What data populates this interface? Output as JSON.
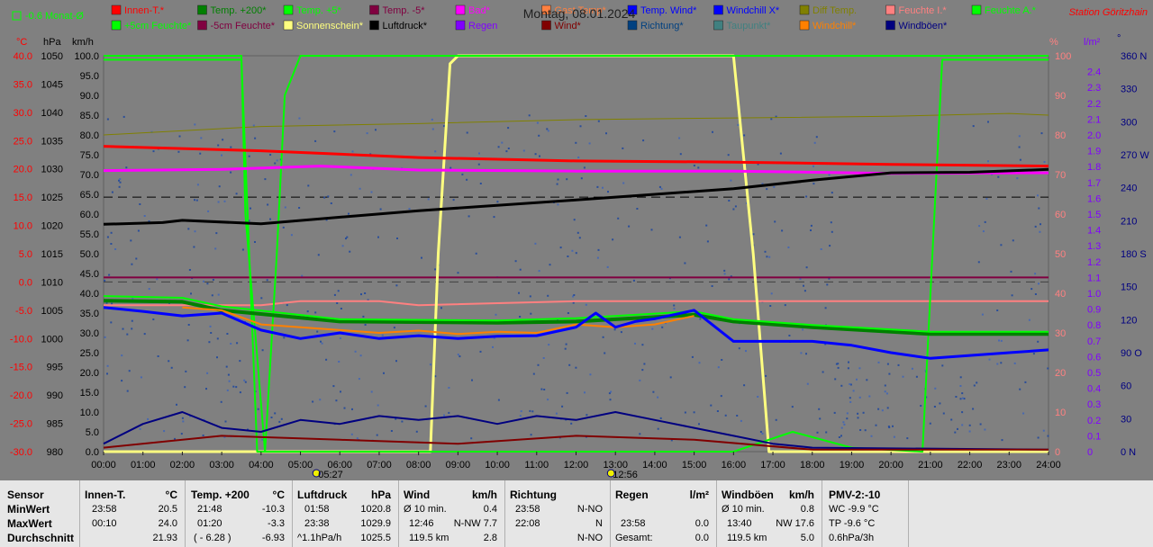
{
  "header": {
    "title": "Montag, 08.01.2024",
    "station": "Station Göritzhain",
    "indicator": "-0.6 Monat-Ø"
  },
  "legend": [
    {
      "label": "Innen-T.*",
      "color": "#ff0000"
    },
    {
      "label": "Temp. +200*",
      "color": "#008000"
    },
    {
      "label": "Temp. +5*",
      "color": "#00ff00"
    },
    {
      "label": "Temp. -5*",
      "color": "#800040"
    },
    {
      "label": "Bad*",
      "color": "#ff00ff"
    },
    {
      "label": "Gast Temp*",
      "color": "#ff8040"
    },
    {
      "label": "Temp. Wind*",
      "color": "#0000ff"
    },
    {
      "label": "Windchill X*",
      "color": "#0000ff"
    },
    {
      "label": "Diff Temp.",
      "color": "#808000"
    },
    {
      "label": "Feuchte I.*",
      "color": "#ff8080"
    },
    {
      "label": "Feuchte A.*",
      "color": "#00ff00"
    },
    {
      "label": "+5cm Feuchte*",
      "color": "#00ff00"
    },
    {
      "label": "-5cm Feuchte*",
      "color": "#800040"
    },
    {
      "label": "Sonnenschein*",
      "color": "#ffff80"
    },
    {
      "label": "Luftdruck*",
      "color": "#000000"
    },
    {
      "label": "Regen",
      "color": "#8000ff"
    },
    {
      "label": "Wind*",
      "color": "#800000"
    },
    {
      "label": "Richtung*",
      "color": "#004080"
    },
    {
      "label": "Taupunkt*",
      "color": "#408080"
    },
    {
      "label": "Windchill*",
      "color": "#ff8000"
    },
    {
      "label": "Windböen*",
      "color": "#000080"
    }
  ],
  "axes": {
    "temp_unit": "°C",
    "hpa_unit": "hPa",
    "kmh_unit": "km/h",
    "pct_unit": "%",
    "rain_unit": "l/m²",
    "dir_unit": "°",
    "temp_ticks": [
      "40.0",
      "35.0",
      "30.0",
      "25.0",
      "20.0",
      "15.0",
      "10.0",
      "5.0",
      "0.0",
      "-5.0",
      "-10.0",
      "-15.0",
      "-20.0",
      "-25.0",
      "-30.0"
    ],
    "hpa_ticks": [
      "1050",
      "1045",
      "1040",
      "1035",
      "1030",
      "1025",
      "1020",
      "1015",
      "1010",
      "1005",
      "1000",
      "995",
      "990",
      "985",
      "980"
    ],
    "kmh_ticks": [
      "100.0",
      "95.0",
      "90.0",
      "85.0",
      "80.0",
      "75.0",
      "70.0",
      "65.0",
      "60.0",
      "55.0",
      "50.0",
      "45.0",
      "40.0",
      "35.0",
      "30.0",
      "25.0",
      "20.0",
      "15.0",
      "10.0",
      "5.0",
      "0.0"
    ],
    "pct_ticks": [
      "100",
      "90",
      "80",
      "70",
      "60",
      "50",
      "40",
      "30",
      "20",
      "10",
      "0"
    ],
    "rain_ticks": [
      "2.4",
      "2.3",
      "2.2",
      "2.1",
      "2.0",
      "1.9",
      "1.8",
      "1.7",
      "1.6",
      "1.5",
      "1.4",
      "1.3",
      "1.2",
      "1.1",
      "1.0",
      "0.9",
      "0.8",
      "0.7",
      "0.6",
      "0.5",
      "0.4",
      "0.3",
      "0.2",
      "0.1",
      "0"
    ],
    "dir_ticks": [
      "360 N",
      "330",
      "300",
      "270 W",
      "240",
      "210",
      "180 S",
      "150",
      "120",
      "90 O",
      "60",
      "30",
      "0 N"
    ],
    "time_ticks": [
      "00:00",
      "01:00",
      "02:00",
      "03:00",
      "04:00",
      "05:00",
      "06:00",
      "07:00",
      "08:00",
      "09:00",
      "10:00",
      "11:00",
      "12:00",
      "13:00",
      "14:00",
      "15:00",
      "16:00",
      "17:00",
      "18:00",
      "19:00",
      "20:00",
      "21:00",
      "22:00",
      "23:00",
      "24:00"
    ],
    "sunrise": "05:27",
    "noon": "12:56"
  },
  "chart_data": {
    "type": "line",
    "title": "Montag, 08.01.2024",
    "x_unit": "hours",
    "ylim_temp": [
      -30,
      40
    ],
    "ylim_pressure": [
      980,
      1050
    ],
    "ylim_wind": [
      0,
      100
    ],
    "ylim_humidity": [
      0,
      100
    ],
    "grid": false,
    "series": [
      {
        "name": "Innen-T.*",
        "axis": "temp",
        "color": "#ff0000",
        "x": [
          0,
          4,
          8,
          12,
          16,
          20,
          24
        ],
        "y": [
          24.0,
          23.2,
          22.0,
          21.4,
          21.2,
          20.8,
          20.5
        ]
      },
      {
        "name": "Bad*",
        "axis": "temp",
        "color": "#ff00ff",
        "x": [
          0,
          3,
          5.5,
          8,
          12,
          16,
          20,
          24
        ],
        "y": [
          19.7,
          19.9,
          20.5,
          19.8,
          19.6,
          19.6,
          19.2,
          19.3
        ]
      },
      {
        "name": "Diff Temp.",
        "axis": "temp",
        "color": "#808000",
        "x": [
          0,
          4,
          8,
          12,
          16,
          20,
          23,
          24
        ],
        "y": [
          26.0,
          27.5,
          28.0,
          28.7,
          29.0,
          29.3,
          29.8,
          29.5
        ]
      },
      {
        "name": "Luftdruck*",
        "axis": "pressure",
        "color": "#000000",
        "x": [
          0,
          1.5,
          2,
          4,
          8,
          12,
          14,
          16,
          18,
          20,
          22,
          24
        ],
        "y": [
          1020.2,
          1020.5,
          1020.9,
          1020.3,
          1022.6,
          1024.5,
          1025.5,
          1026.5,
          1028.0,
          1029.3,
          1029.4,
          1029.9
        ]
      },
      {
        "name": "Temp. +200*",
        "axis": "temp",
        "color": "#008000",
        "x": [
          0,
          2,
          3,
          6,
          10,
          12,
          15,
          16,
          18,
          21,
          24
        ],
        "y": [
          -3.3,
          -3.5,
          -5.0,
          -7.0,
          -7.2,
          -7.0,
          -5.8,
          -7.0,
          -8.0,
          -9.2,
          -9.2
        ]
      },
      {
        "name": "Temp. +5*",
        "axis": "temp",
        "color": "#00ff00",
        "x": [
          0,
          2,
          3,
          6,
          10,
          12,
          15,
          16,
          18,
          21,
          24
        ],
        "y": [
          -2.5,
          -2.8,
          -4.3,
          -6.6,
          -6.8,
          -6.4,
          -5.2,
          -6.6,
          -7.6,
          -8.8,
          -8.8
        ]
      },
      {
        "name": "Temp. Wind*",
        "axis": "temp",
        "color": "#0000ff",
        "x": [
          0,
          1,
          2,
          3,
          4,
          5,
          6,
          7,
          8,
          9,
          10,
          11,
          12,
          12.5,
          13,
          13.5,
          14,
          15,
          16,
          17,
          18,
          19,
          20,
          21,
          22,
          23,
          24
        ],
        "y": [
          -4.5,
          -5.2,
          -6.0,
          -5.5,
          -8.5,
          -10.0,
          -9.0,
          -10.0,
          -9.5,
          -10.0,
          -9.6,
          -9.5,
          -8.0,
          -5.5,
          -8.0,
          -7.0,
          -6.5,
          -5.0,
          -10.5,
          -10.5,
          -10.5,
          -11.2,
          -12.5,
          -13.5,
          -13.0,
          -12.5,
          -12.0
        ]
      },
      {
        "name": "Windchill*",
        "axis": "temp",
        "color": "#ff8000",
        "x": [
          2,
          3,
          4,
          5,
          6,
          7,
          8,
          9,
          10,
          11,
          12,
          13,
          14,
          15
        ],
        "y": [
          -4.5,
          -5.0,
          -7.5,
          -8.0,
          -8.5,
          -9.0,
          -8.6,
          -9.2,
          -8.8,
          -9.0,
          -7.5,
          -8.0,
          -7.5,
          -6.0
        ]
      },
      {
        "name": "Feuchte I.*",
        "axis": "humidity",
        "color": "#ff8080",
        "x": [
          0,
          4,
          5,
          7,
          8,
          12,
          16,
          20,
          24
        ],
        "y": [
          37,
          37,
          38,
          38,
          37,
          38,
          38,
          38,
          38
        ]
      },
      {
        "name": "-5cm Feuchte*",
        "axis": "humidity",
        "color": "#800040",
        "x": [
          0,
          24
        ],
        "y": [
          44,
          44
        ]
      },
      {
        "name": "+5cm Feuchte*",
        "axis": "humidity",
        "color": "#00ff00",
        "x": [
          0,
          3.5,
          3.9,
          4.3,
          8,
          12,
          16,
          17.5,
          19,
          20.8,
          21.3,
          24
        ],
        "y": [
          99,
          99,
          0,
          0,
          0,
          0,
          0,
          5,
          1,
          0,
          99,
          99
        ]
      },
      {
        "name": "Sonnenschein*",
        "axis": "humidity",
        "color": "#ffff80",
        "x": [
          0,
          8.3,
          8.5,
          8.8,
          9.0,
          16,
          16.5,
          16.9,
          24
        ],
        "y": [
          0,
          0,
          50,
          98,
          100,
          100,
          50,
          0,
          0
        ]
      },
      {
        "name": "Feuchte A.*",
        "axis": "humidity",
        "color": "#00ff00",
        "x": [
          0,
          3.5,
          3.6,
          4.1,
          4.4,
          4.6,
          5.0,
          24
        ],
        "y": [
          100,
          100,
          60,
          0,
          50,
          90,
          100,
          100
        ]
      },
      {
        "name": "Wind*",
        "axis": "wind",
        "color": "#800000",
        "x": [
          0,
          3,
          6,
          9,
          12,
          15,
          18,
          24
        ],
        "y": [
          1,
          4,
          3,
          2,
          4,
          3,
          0.5,
          0.5
        ]
      },
      {
        "name": "Windböen*",
        "axis": "wind",
        "color": "#000080",
        "x": [
          0,
          1,
          2,
          3,
          4,
          5,
          6,
          7,
          8,
          9,
          10,
          11,
          12,
          13,
          14,
          15,
          16,
          17,
          18,
          24
        ],
        "y": [
          2,
          7,
          10,
          6,
          5,
          8,
          7,
          9,
          8,
          9,
          7,
          9,
          8,
          10,
          8,
          6,
          4,
          2,
          1,
          0.5
        ]
      }
    ]
  },
  "stats": {
    "labels": {
      "sensor": "Sensor",
      "min": "MinWert",
      "max": "MaxWert",
      "avg": "Durchschnitt"
    },
    "innen": {
      "title": "Innen-T.",
      "unit": "°C",
      "min_time": "23:58",
      "min_val": "20.5",
      "max_time": "00:10",
      "max_val": "24.0",
      "avg": "21.93"
    },
    "temp200": {
      "title": "Temp. +200",
      "unit": "°C",
      "min_time": "21:48",
      "min_val": "-10.3",
      "max_time": "01:20",
      "max_val": "-3.3",
      "avg_note": "( - 6.28 )",
      "avg": "-6.93"
    },
    "luft": {
      "title": "Luftdruck",
      "unit": "hPa",
      "min_time": "01:58",
      "min_val": "1020.8",
      "max_time": "23:38",
      "max_val": "1029.9",
      "avg_note": "^1.1hPa/h",
      "avg": "1025.5"
    },
    "wind": {
      "title": "Wind",
      "unit": "km/h",
      "r1a": "Ø 10 min.",
      "r1b": "0.4",
      "r2a": "12:46",
      "r2b": "N-NW 7.7",
      "r3a": "119.5 km",
      "r3b": "2.8"
    },
    "richtung": {
      "title": "Richtung",
      "r1a": "23:58",
      "r1b": "N-NO",
      "r2a": "22:08",
      "r2b": "N",
      "r3b": "N-NO"
    },
    "regen": {
      "title": "Regen",
      "unit": "l/m²",
      "r2a": "23:58",
      "r2b": "0.0",
      "r3a": "Gesamt:",
      "r3b": "0.0"
    },
    "boeen": {
      "title": "Windböen",
      "unit": "km/h",
      "r1a": "Ø 10 min.",
      "r1b": "0.8",
      "r2a": "13:40",
      "r2b": "NW 17.6",
      "r3a": "119.5 km",
      "r3b": "5.0"
    },
    "pmv": {
      "title": "PMV-2:-10",
      "r1": "WC -9.9 °C",
      "r2": "TP -9.6 °C",
      "r3": "0.6hPa/3h"
    }
  }
}
